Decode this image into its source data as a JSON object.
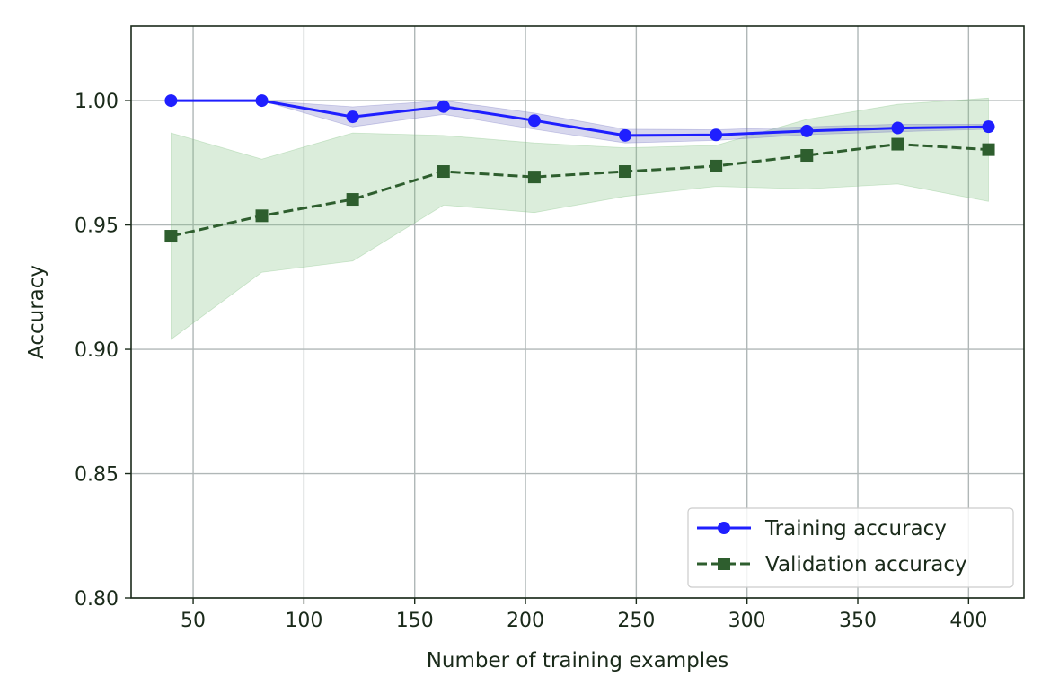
{
  "chart_data": {
    "type": "line",
    "title": "",
    "xlabel": "Number of training examples",
    "ylabel": "Accuracy",
    "xlim": [
      22,
      425
    ],
    "ylim": [
      0.8,
      1.03
    ],
    "x_ticks": [
      50,
      100,
      150,
      200,
      250,
      300,
      350,
      400
    ],
    "y_ticks": [
      0.8,
      0.85,
      0.9,
      0.95,
      1.0
    ],
    "y_tick_labels": [
      "0.80",
      "0.85",
      "0.90",
      "0.95",
      "1.00"
    ],
    "grid": true,
    "legend_position": "lower right",
    "x": [
      40,
      81,
      122,
      163,
      204,
      245,
      286,
      327,
      368,
      409
    ],
    "series": [
      {
        "name": "Training accuracy",
        "color": "#1f1fff",
        "linestyle": "solid",
        "marker": "circle",
        "values": [
          1.0,
          1.0,
          0.9935,
          0.9976,
          0.992,
          0.986,
          0.9862,
          0.9878,
          0.989,
          0.9895
        ],
        "band_upper": [
          1.0,
          1.0,
          0.9975,
          1.0,
          0.995,
          0.9885,
          0.9883,
          0.9895,
          0.9905,
          0.9905
        ],
        "band_lower": [
          1.0,
          1.0,
          0.9895,
          0.9945,
          0.9885,
          0.983,
          0.984,
          0.9863,
          0.9875,
          0.9885
        ],
        "band_color": "#7070c0"
      },
      {
        "name": "Validation accuracy",
        "color": "#2e5e2e",
        "linestyle": "dashed",
        "marker": "square",
        "values": [
          0.9455,
          0.9537,
          0.9603,
          0.9715,
          0.9693,
          0.9715,
          0.9737,
          0.978,
          0.9825,
          0.9803
        ],
        "band_upper": [
          0.987,
          0.9765,
          0.987,
          0.986,
          0.983,
          0.981,
          0.982,
          0.9925,
          0.9985,
          1.001
        ],
        "band_lower": [
          0.904,
          0.931,
          0.9355,
          0.958,
          0.955,
          0.9615,
          0.9655,
          0.9645,
          0.9665,
          0.9595
        ],
        "band_color": "#7fbf7f"
      }
    ]
  }
}
